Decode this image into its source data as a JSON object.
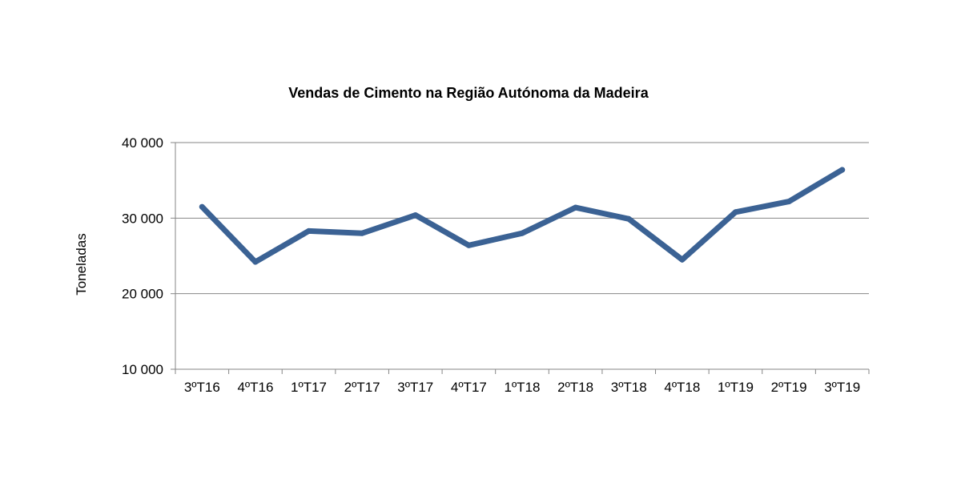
{
  "chart_data": {
    "type": "line",
    "title": "Vendas de Cimento na Região Autónoma da Madeira",
    "xlabel": "",
    "ylabel": "Toneladas",
    "categories": [
      "3ºT16",
      "4ºT16",
      "1ºT17",
      "2ºT17",
      "3ºT17",
      "4ºT17",
      "1ºT18",
      "2ºT18",
      "3ºT18",
      "4ºT18",
      "1ºT19",
      "2ºT19",
      "3ºT19"
    ],
    "series": [
      {
        "values": [
          31500,
          24200,
          28300,
          28000,
          30400,
          26400,
          28000,
          31400,
          29900,
          24500,
          30800,
          32200,
          36400
        ],
        "color": "#3B6294"
      }
    ],
    "ylim": [
      10000,
      40000
    ],
    "yticks": [
      10000,
      20000,
      30000,
      40000
    ],
    "ytick_labels": [
      "10 000",
      "20 000",
      "30 000",
      "40 000"
    ],
    "grid": true,
    "legend": "none"
  }
}
